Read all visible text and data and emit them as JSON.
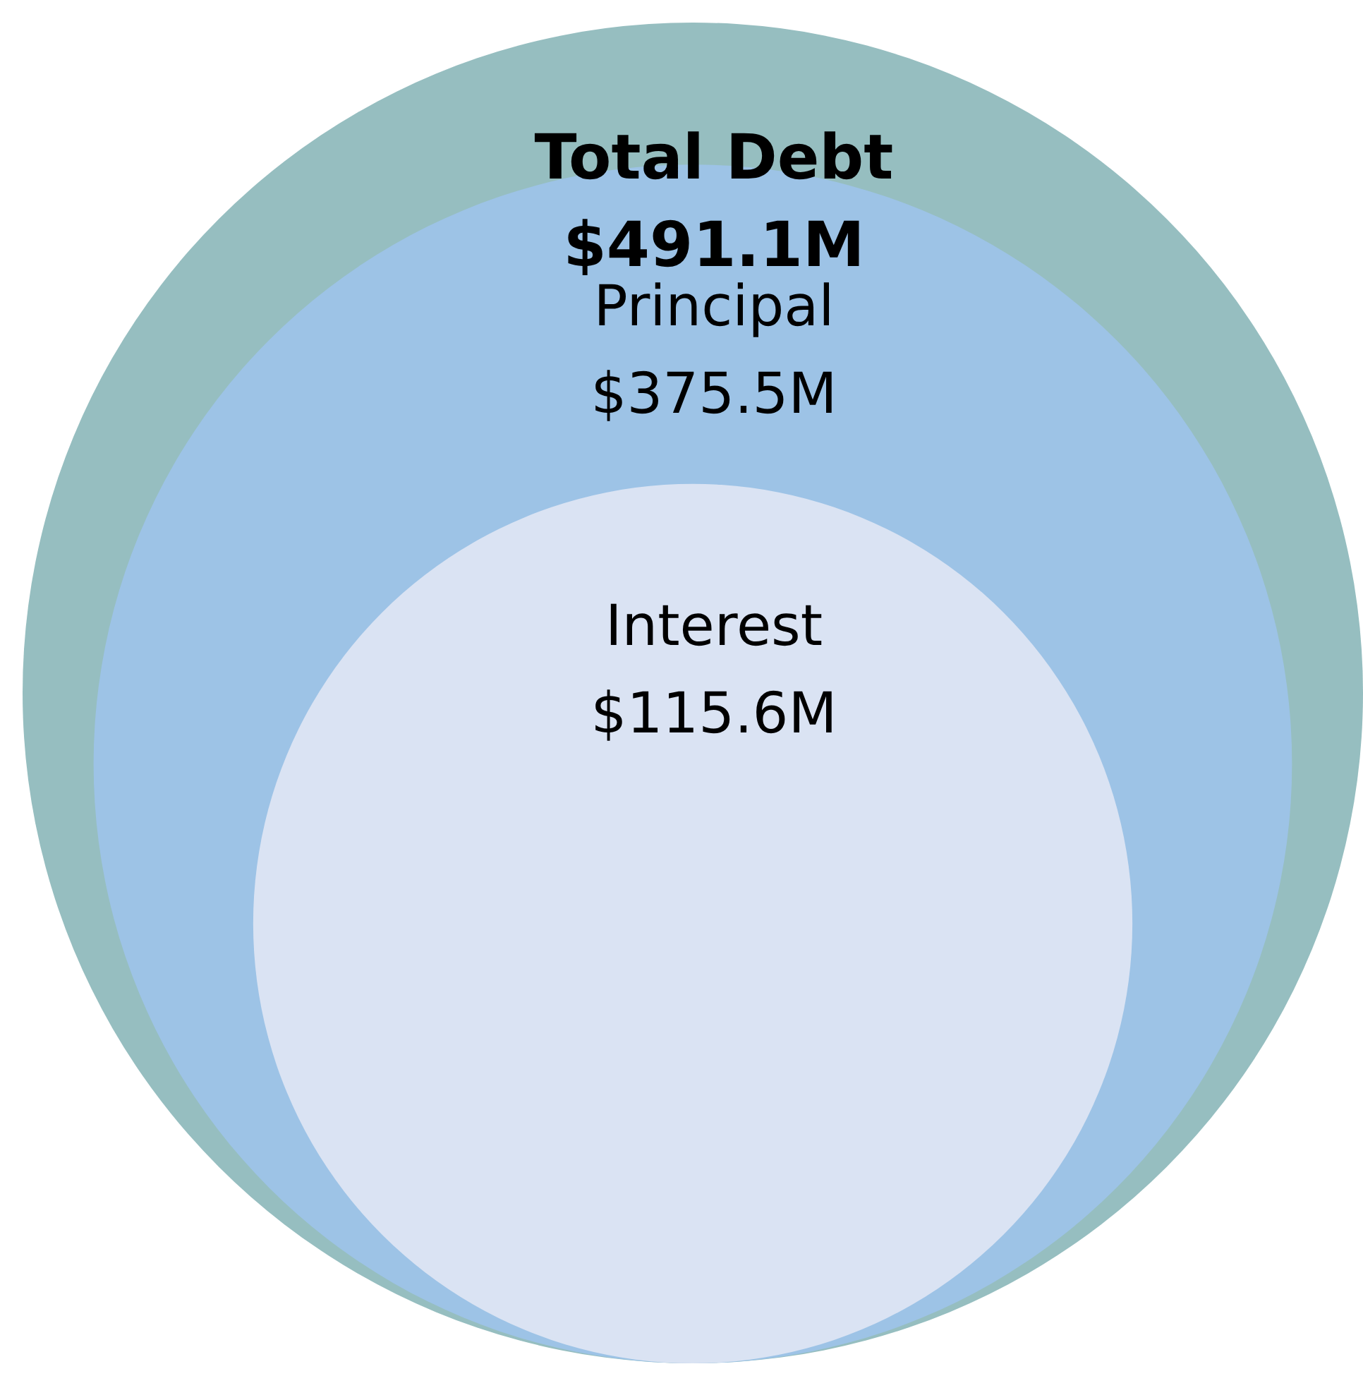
{
  "chart_data": {
    "type": "other",
    "categories": [
      "Total Debt",
      "Principal",
      "Interest"
    ],
    "values": [
      491.1,
      375.5,
      115.6
    ],
    "value_labels": [
      "$491.1M",
      "$375.5M",
      "$115.6M"
    ],
    "colors": [
      "#96bec0",
      "#9dc3e6",
      "#dae3f3"
    ]
  }
}
